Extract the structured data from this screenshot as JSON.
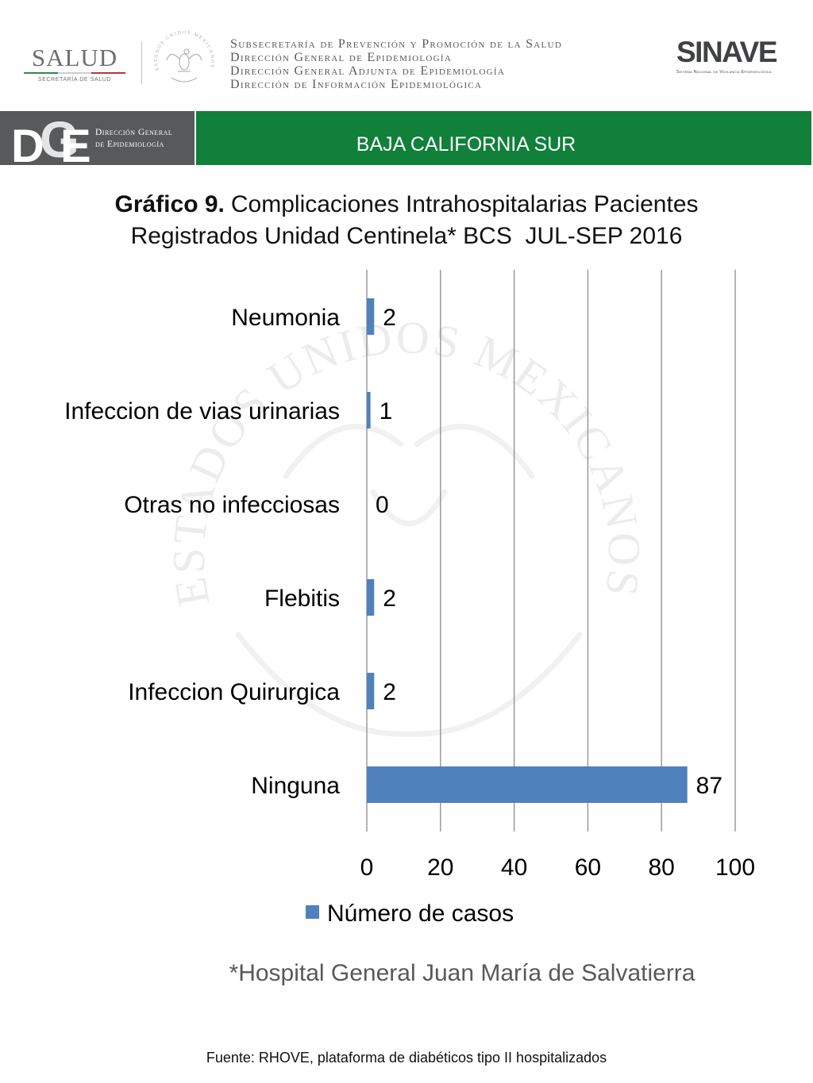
{
  "header": {
    "salud_logo": {
      "name": "SALUD",
      "subtitle": "SECRETARÍA DE SALUD"
    },
    "seal_text": "ESTADOS UNIDOS MEXICANOS",
    "lines": [
      "Subsecretaría de Prevención y Promoción de la Salud",
      "Dirección General de Epidemiología",
      "Dirección General Adjunta de Epidemiología",
      "Dirección de Información Epidemiológica"
    ],
    "sinave_logo": {
      "name": "SINAVE",
      "subtitle": "Sistema Nacional de Vigilancia Epidemiológica"
    }
  },
  "banner": {
    "dge_letters": [
      "D",
      "G",
      "E"
    ],
    "dge_lines": [
      "Dirección General",
      "de Epidemiología"
    ],
    "region": "BAJA CALIFORNIA SUR",
    "left_color": "#58595B",
    "right_color": "#10803A"
  },
  "chart_data": {
    "type": "bar",
    "orientation": "horizontal",
    "title": {
      "label": "Gráfico 9.",
      "line1": "Complicaciones Intrahospitalarias Pacientes",
      "line2": "Registrados Unidad Centinela* BCS  JUL-SEP 2016"
    },
    "categories": [
      "Neumonia",
      "Infeccion de vias urinarias",
      "Otras no infecciosas",
      "Flebitis",
      "Infeccion Quirurgica",
      "Ninguna"
    ],
    "series": [
      {
        "name": "Número de casos",
        "values": [
          2,
          1,
          0,
          2,
          2,
          87
        ],
        "color": "#4F81BD"
      }
    ],
    "xlim": [
      0,
      100
    ],
    "xticks": [
      0,
      20,
      40,
      60,
      80,
      100
    ],
    "grid": "vertical",
    "legend": "bottom"
  },
  "footnote": "*Hospital General Juan María de Salvatierra",
  "source": "Fuente: RHOVE, plataforma de diabéticos tipo II hospitalizados",
  "watermark": {
    "text": "ESTADOS UNIDOS MEXICANOS"
  }
}
